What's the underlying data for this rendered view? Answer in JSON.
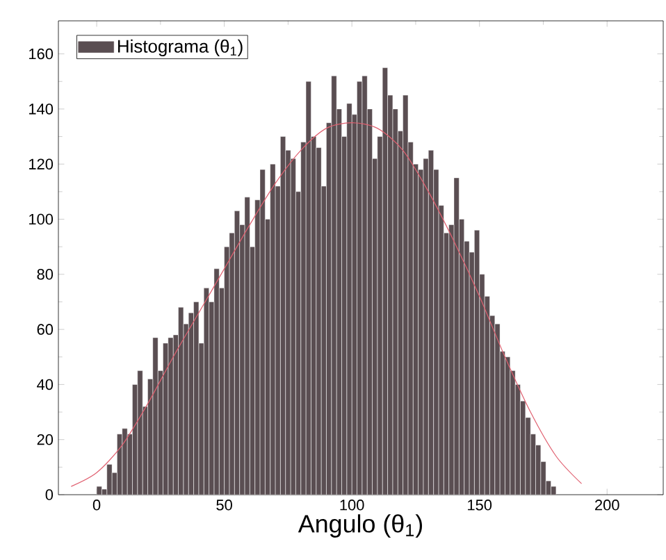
{
  "chart_data": {
    "type": "histogram",
    "xlabel": "Angulo (θ$_{1}$)",
    "xlim": [
      -15,
      222
    ],
    "ylim": [
      0,
      172
    ],
    "xticks": [
      0,
      50,
      100,
      150,
      200
    ],
    "yticks": [
      0,
      20,
      40,
      60,
      80,
      100,
      120,
      140,
      160
    ],
    "legend": "top left",
    "series": [
      {
        "name": "Histograma (θ$_{1}$)",
        "color": "#5a4e52",
        "bins": [
          0,
          2,
          4,
          6,
          8,
          10,
          12,
          14,
          16,
          18,
          20,
          22,
          24,
          26,
          28,
          30,
          32,
          34,
          36,
          38,
          40,
          42,
          44,
          46,
          48,
          50,
          52,
          54,
          56,
          58,
          60,
          62,
          64,
          66,
          68,
          70,
          72,
          74,
          76,
          78,
          80,
          82,
          84,
          86,
          88,
          90,
          92,
          94,
          96,
          98,
          100,
          102,
          104,
          106,
          108,
          110,
          112,
          114,
          116,
          118,
          120,
          122,
          124,
          126,
          128,
          130,
          132,
          134,
          136,
          138,
          140,
          142,
          144,
          146,
          148,
          150,
          152,
          154,
          156,
          158,
          160,
          162,
          164,
          166,
          168,
          170,
          172,
          174,
          176,
          178,
          180
        ],
        "values": [
          3,
          2,
          11,
          8,
          22,
          24,
          22,
          40,
          45,
          32,
          42,
          57,
          45,
          55,
          57,
          58,
          68,
          62,
          66,
          70,
          55,
          75,
          70,
          82,
          75,
          90,
          95,
          103,
          98,
          108,
          90,
          107,
          118,
          100,
          120,
          112,
          130,
          125,
          122,
          110,
          128,
          150,
          130,
          126,
          112,
          135,
          152,
          140,
          130,
          142,
          138,
          150,
          152,
          140,
          122,
          130,
          155,
          145,
          140,
          132,
          145,
          128,
          120,
          118,
          122,
          125,
          118,
          105,
          95,
          98,
          115,
          100,
          92,
          88,
          96,
          80,
          72,
          65,
          62,
          52,
          50,
          45,
          40,
          34,
          28,
          22,
          18,
          12,
          5,
          3
        ]
      },
      {
        "type": "line",
        "color": "#e06070",
        "x": [
          -10,
          0,
          10,
          20,
          30,
          40,
          50,
          60,
          70,
          80,
          90,
          100,
          110,
          120,
          130,
          140,
          150,
          160,
          170,
          180,
          190
        ],
        "values": [
          3,
          8,
          18,
          33,
          50,
          66,
          82,
          98,
          113,
          125,
          133,
          135,
          133,
          125,
          110,
          92,
          72,
          50,
          30,
          14,
          4
        ]
      }
    ]
  }
}
